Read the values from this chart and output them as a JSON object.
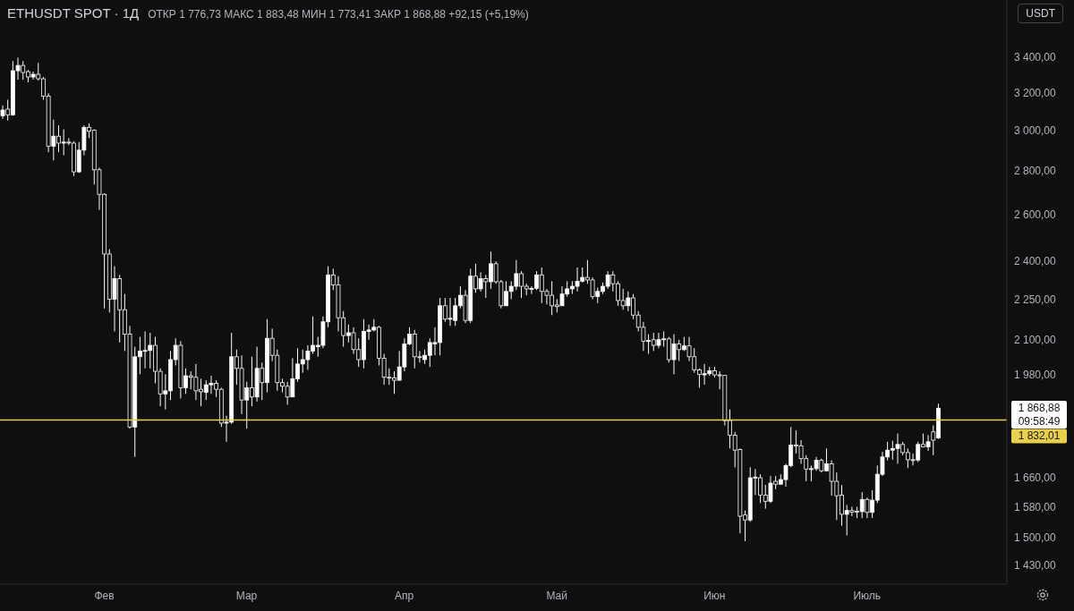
{
  "chart_data": {
    "type": "candlestick",
    "title": "ETHUSDT SPOT · 1Д",
    "subtitle": "ОТКР 1 776,73 МАКС 1 883,48 МИН 1 773,41 ЗАКР 1 868,88 +92,15 (+5,19%)",
    "ylabel": "USDT",
    "color": "#ffffff",
    "log": true,
    "categories": [
      null,
      null,
      null,
      null,
      null,
      null,
      null,
      null,
      null,
      null,
      null,
      null,
      null,
      null,
      null,
      null,
      null,
      null,
      null,
      null,
      "Фев",
      null,
      null,
      null,
      null,
      null,
      null,
      null,
      null,
      null,
      null,
      null,
      null,
      null,
      null,
      null,
      null,
      null,
      null,
      null,
      null,
      null,
      null,
      null,
      null,
      null,
      null,
      null,
      "Мар",
      null,
      null,
      null,
      null,
      null,
      null,
      null,
      null,
      null,
      null,
      null,
      null,
      null,
      null,
      null,
      null,
      null,
      null,
      null,
      null,
      null,
      null,
      null,
      null,
      null,
      null,
      null,
      null,
      null,
      null,
      "Апр",
      null,
      null,
      null,
      null,
      null,
      null,
      null,
      null,
      null,
      null,
      null,
      null,
      null,
      null,
      null,
      null,
      null,
      null,
      null,
      null,
      null,
      null,
      null,
      null,
      null,
      null,
      null,
      null,
      null,
      "Май",
      null,
      null,
      null,
      null,
      null,
      null,
      null,
      null,
      null,
      null,
      null,
      null,
      null,
      null,
      null,
      null,
      null,
      null,
      null,
      null,
      null,
      null,
      null,
      null,
      null,
      null,
      null,
      null,
      null,
      null,
      "Июн",
      null,
      null,
      null,
      null,
      null,
      null,
      null,
      null,
      null,
      null,
      null,
      null,
      null,
      null,
      null,
      null,
      null,
      null,
      null,
      null,
      null,
      null,
      null,
      null,
      null,
      null,
      null,
      null,
      null,
      "Июль",
      null,
      null,
      null,
      null,
      null,
      null,
      null,
      null,
      null,
      null,
      null,
      null,
      null,
      null,
      null,
      null,
      null,
      null,
      null,
      null,
      null,
      null,
      null,
      null,
      null,
      null,
      null
    ],
    "ohlc": [
      [
        3075,
        3130,
        3060,
        3105
      ],
      [
        3110,
        3160,
        3050,
        3080
      ],
      [
        3080,
        3375,
        3075,
        3320
      ],
      [
        3320,
        3395,
        3270,
        3350
      ],
      [
        3350,
        3375,
        3270,
        3310
      ],
      [
        3315,
        3325,
        3255,
        3285
      ],
      [
        3285,
        3315,
        3270,
        3300
      ],
      [
        3300,
        3365,
        3265,
        3275
      ],
      [
        3275,
        3285,
        3160,
        3180
      ],
      [
        3180,
        3195,
        2890,
        2920
      ],
      [
        2920,
        3055,
        2850,
        2970
      ],
      [
        2970,
        3025,
        2890,
        2935
      ],
      [
        2935,
        3005,
        2875,
        2940
      ],
      [
        2940,
        2960,
        2925,
        2938
      ],
      [
        2935,
        2945,
        2775,
        2795
      ],
      [
        2795,
        2940,
        2790,
        2900
      ],
      [
        2900,
        3025,
        2875,
        3015
      ],
      [
        3015,
        3035,
        2960,
        2995
      ],
      [
        3000,
        3005,
        2735,
        2805
      ],
      [
        2805,
        2815,
        2620,
        2690
      ],
      [
        2690,
        2695,
        2215,
        2430
      ],
      [
        2430,
        2450,
        2200,
        2250
      ],
      [
        2250,
        2380,
        2130,
        2330
      ],
      [
        2330,
        2345,
        2090,
        2210
      ],
      [
        2210,
        2270,
        2060,
        2120
      ],
      [
        2120,
        2150,
        1805,
        1810
      ],
      [
        1810,
        2075,
        1720,
        2040
      ],
      [
        2040,
        2110,
        1980,
        2060
      ],
      [
        2060,
        2130,
        2000,
        2062
      ],
      [
        2062,
        2125,
        2000,
        2080
      ],
      [
        2080,
        2110,
        1950,
        1990
      ],
      [
        1990,
        2000,
        1875,
        1915
      ],
      [
        1915,
        1980,
        1865,
        1925
      ],
      [
        1925,
        2060,
        1895,
        2030
      ],
      [
        2030,
        2105,
        2010,
        2080
      ],
      [
        2080,
        2095,
        1900,
        1935
      ],
      [
        1935,
        2000,
        1915,
        1975
      ],
      [
        1975,
        1990,
        1930,
        1970
      ],
      [
        1970,
        2015,
        1895,
        1925
      ],
      [
        1930,
        1965,
        1875,
        1922
      ],
      [
        1920,
        1960,
        1895,
        1945
      ],
      [
        1945,
        1975,
        1915,
        1950
      ],
      [
        1950,
        1960,
        1905,
        1930
      ],
      [
        1930,
        1935,
        1810,
        1822
      ],
      [
        1822,
        1845,
        1765,
        1825
      ],
      [
        1825,
        2125,
        1820,
        2040
      ],
      [
        2040,
        2065,
        1945,
        2000
      ],
      [
        2000,
        2045,
        1850,
        1895
      ],
      [
        1895,
        1955,
        1805,
        1935
      ],
      [
        1935,
        2040,
        1875,
        1905
      ],
      [
        1905,
        2075,
        1890,
        2000
      ],
      [
        2000,
        2020,
        1895,
        1952
      ],
      [
        1952,
        2175,
        1920,
        2105
      ],
      [
        2105,
        2140,
        2025,
        2045
      ],
      [
        2045,
        2065,
        1925,
        1952
      ],
      [
        1952,
        1965,
        1920,
        1940
      ],
      [
        1940,
        1955,
        1880,
        1905
      ],
      [
        1905,
        2035,
        1905,
        1965
      ],
      [
        1965,
        2070,
        1955,
        2015
      ],
      [
        2015,
        2065,
        1985,
        2030
      ],
      [
        2030,
        2080,
        1995,
        2060
      ],
      [
        2060,
        2185,
        2050,
        2080
      ],
      [
        2075,
        2110,
        2040,
        2080
      ],
      [
        2080,
        2185,
        2070,
        2165
      ],
      [
        2165,
        2380,
        2145,
        2345
      ],
      [
        2345,
        2370,
        2285,
        2305
      ],
      [
        2305,
        2340,
        2130,
        2180
      ],
      [
        2180,
        2205,
        2075,
        2115
      ],
      [
        2115,
        2155,
        2090,
        2125
      ],
      [
        2125,
        2145,
        2050,
        2065
      ],
      [
        2065,
        2105,
        2005,
        2030
      ],
      [
        2030,
        2175,
        2000,
        2130
      ],
      [
        2130,
        2155,
        2100,
        2135
      ],
      [
        2135,
        2175,
        2130,
        2145
      ],
      [
        2145,
        2150,
        2010,
        2035
      ],
      [
        2035,
        2050,
        1945,
        1970
      ],
      [
        1970,
        2000,
        1945,
        1968
      ],
      [
        1968,
        1990,
        1915,
        1960
      ],
      [
        1960,
        2060,
        1958,
        2005
      ],
      [
        2005,
        2105,
        1990,
        2085
      ],
      [
        2085,
        2145,
        2080,
        2120
      ],
      [
        2120,
        2135,
        2000,
        2040
      ],
      [
        2040,
        2060,
        2020,
        2038
      ],
      [
        2030,
        2065,
        2015,
        2045
      ],
      [
        2045,
        2105,
        2005,
        2090
      ],
      [
        2085,
        2145,
        2045,
        2090
      ],
      [
        2090,
        2255,
        2045,
        2225
      ],
      [
        2225,
        2255,
        2165,
        2175
      ],
      [
        2175,
        2255,
        2150,
        2178
      ],
      [
        2170,
        2255,
        2150,
        2225
      ],
      [
        2225,
        2300,
        2215,
        2265
      ],
      [
        2265,
        2285,
        2160,
        2170
      ],
      [
        2170,
        2370,
        2160,
        2340
      ],
      [
        2340,
        2390,
        2275,
        2290
      ],
      [
        2290,
        2355,
        2280,
        2330
      ],
      [
        2330,
        2345,
        2255,
        2318
      ],
      [
        2318,
        2440,
        2290,
        2390
      ],
      [
        2390,
        2400,
        2310,
        2318
      ],
      [
        2318,
        2325,
        2215,
        2225
      ],
      [
        2225,
        2320,
        2225,
        2280
      ],
      [
        2280,
        2320,
        2250,
        2300
      ],
      [
        2300,
        2405,
        2285,
        2350
      ],
      [
        2350,
        2360,
        2255,
        2300
      ],
      [
        2300,
        2310,
        2265,
        2290
      ],
      [
        2288,
        2300,
        2270,
        2292
      ],
      [
        2292,
        2360,
        2285,
        2345
      ],
      [
        2345,
        2375,
        2235,
        2280
      ],
      [
        2280,
        2290,
        2230,
        2265
      ],
      [
        2265,
        2320,
        2190,
        2225
      ],
      [
        2228,
        2250,
        2200,
        2222
      ],
      [
        2225,
        2300,
        2225,
        2270
      ],
      [
        2270,
        2320,
        2260,
        2290
      ],
      [
        2290,
        2320,
        2270,
        2300
      ],
      [
        2300,
        2375,
        2280,
        2320
      ],
      [
        2320,
        2375,
        2315,
        2335
      ],
      [
        2335,
        2405,
        2310,
        2325
      ],
      [
        2325,
        2335,
        2250,
        2260
      ],
      [
        2260,
        2295,
        2235,
        2280
      ],
      [
        2280,
        2315,
        2270,
        2300
      ],
      [
        2300,
        2360,
        2290,
        2345
      ],
      [
        2345,
        2360,
        2280,
        2310
      ],
      [
        2310,
        2320,
        2225,
        2245
      ],
      [
        2245,
        2290,
        2210,
        2225
      ],
      [
        2225,
        2280,
        2205,
        2255
      ],
      [
        2255,
        2270,
        2175,
        2190
      ],
      [
        2190,
        2205,
        2130,
        2145
      ],
      [
        2145,
        2165,
        2060,
        2095
      ],
      [
        2095,
        2120,
        2050,
        2097
      ],
      [
        2100,
        2125,
        2060,
        2080
      ],
      [
        2080,
        2125,
        2070,
        2100
      ],
      [
        2100,
        2130,
        2075,
        2103
      ],
      [
        2103,
        2110,
        2020,
        2030
      ],
      [
        2030,
        2120,
        1980,
        2085
      ],
      [
        2085,
        2100,
        2025,
        2065
      ],
      [
        2065,
        2110,
        2060,
        2078
      ],
      [
        2078,
        2110,
        2025,
        2040
      ],
      [
        2040,
        2070,
        1985,
        1995
      ],
      [
        1995,
        2000,
        1935,
        1980
      ],
      [
        1978,
        2015,
        1945,
        1982
      ],
      [
        1982,
        2005,
        1975,
        1992
      ],
      [
        1992,
        2005,
        1970,
        1978
      ],
      [
        1978,
        1990,
        1930,
        1976
      ],
      [
        1976,
        1978,
        1815,
        1830
      ],
      [
        1830,
        1865,
        1745,
        1785
      ],
      [
        1785,
        1795,
        1690,
        1740
      ],
      [
        1742,
        1745,
        1510,
        1555
      ],
      [
        1558,
        1570,
        1490,
        1545
      ],
      [
        1545,
        1690,
        1540,
        1660
      ],
      [
        1660,
        1685,
        1612,
        1662
      ],
      [
        1660,
        1670,
        1590,
        1612
      ],
      [
        1612,
        1640,
        1575,
        1595
      ],
      [
        1595,
        1665,
        1590,
        1645
      ],
      [
        1650,
        1665,
        1628,
        1642
      ],
      [
        1642,
        1670,
        1640,
        1655
      ],
      [
        1655,
        1700,
        1635,
        1695
      ],
      [
        1695,
        1810,
        1690,
        1755
      ],
      [
        1755,
        1800,
        1730,
        1753
      ],
      [
        1753,
        1770,
        1700,
        1715
      ],
      [
        1715,
        1725,
        1650,
        1685
      ],
      [
        1685,
        1695,
        1650,
        1686
      ],
      [
        1686,
        1720,
        1680,
        1710
      ],
      [
        1710,
        1715,
        1675,
        1680
      ],
      [
        1680,
        1745,
        1678,
        1700
      ],
      [
        1700,
        1710,
        1610,
        1650
      ],
      [
        1650,
        1675,
        1545,
        1610
      ],
      [
        1612,
        1640,
        1530,
        1560
      ],
      [
        1560,
        1585,
        1505,
        1570
      ],
      [
        1570,
        1580,
        1555,
        1566
      ],
      [
        1568,
        1580,
        1550,
        1567
      ],
      [
        1567,
        1620,
        1550,
        1600
      ],
      [
        1600,
        1605,
        1550,
        1565
      ],
      [
        1565,
        1625,
        1550,
        1598
      ],
      [
        1598,
        1695,
        1590,
        1670
      ],
      [
        1670,
        1735,
        1665,
        1720
      ],
      [
        1720,
        1765,
        1710,
        1740
      ],
      [
        1740,
        1768,
        1712,
        1745
      ],
      [
        1745,
        1790,
        1700,
        1757
      ],
      [
        1757,
        1765,
        1725,
        1733
      ],
      [
        1733,
        1745,
        1688,
        1712
      ],
      [
        1712,
        1730,
        1695,
        1711
      ],
      [
        1711,
        1765,
        1705,
        1757
      ],
      [
        1757,
        1790,
        1748,
        1750
      ],
      [
        1750,
        1785,
        1738,
        1765
      ],
      [
        1795,
        1815,
        1725,
        1770
      ],
      [
        1776.73,
        1883.48,
        1773.41,
        1868.88
      ],
      null,
      null,
      null,
      null,
      null,
      null,
      null,
      null,
      null,
      null,
      null,
      null,
      null
    ],
    "ylim": [
      1385,
      3745
    ],
    "yticks": [
      {
        "value": 1430,
        "label": "1 430,00"
      },
      {
        "value": 1500,
        "label": "1 500,00"
      },
      {
        "value": 1580,
        "label": "1 580,00"
      },
      {
        "value": 1660,
        "label": "1 660,00"
      },
      {
        "value": 1980,
        "label": "1 980,00"
      },
      {
        "value": 2100,
        "label": "2 100,00"
      },
      {
        "value": 2250,
        "label": "2 250,00"
      },
      {
        "value": 2400,
        "label": "2 400,00"
      },
      {
        "value": 2600,
        "label": "2 600,00"
      },
      {
        "value": 2800,
        "label": "2 800,00"
      },
      {
        "value": 3000,
        "label": "3 000,00"
      },
      {
        "value": 3200,
        "label": "3 200,00"
      },
      {
        "value": 3400,
        "label": "3 400,00"
      }
    ],
    "ref_lines": [
      {
        "axis": "y",
        "value": 1832.01,
        "label": "1 832,01",
        "color": "#e8d04c"
      }
    ],
    "annotations": [
      "1 868,88",
      "09:58:49"
    ]
  }
}
